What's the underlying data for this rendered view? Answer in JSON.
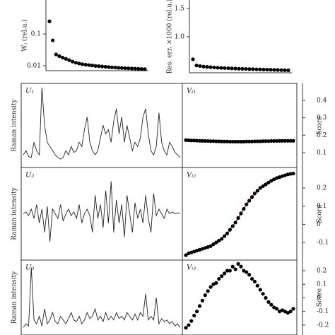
{
  "chart_data": [
    {
      "type": "scatter",
      "ylabel": "Wⱼ (rel.u.)",
      "log_scale": true,
      "color": "#000000",
      "ylim": [
        0.007,
        1.17
      ],
      "yticks": [
        0.01,
        0.1
      ],
      "values": [
        0.25,
        0.063,
        0.0227,
        0.02,
        0.018,
        0.0165,
        0.015,
        0.0135,
        0.0125,
        0.0118,
        0.0112,
        0.0108,
        0.0105,
        0.0102,
        0.0099,
        0.0097,
        0.0095,
        0.0093,
        0.0091,
        0.0089,
        0.0088,
        0.0086,
        0.0085,
        0.0084,
        0.0083,
        0.0082,
        0.0081,
        0.008,
        0.0079,
        0.0078
      ]
    },
    {
      "type": "scatter",
      "ylabel": "Res. err. ×1000 (rel.u.)",
      "log_scale": false,
      "color": "#000000",
      "ylim": [
        0.36,
        1.65
      ],
      "yticks": [
        {
          "value": 1,
          "label": "1.0"
        },
        1.5
      ],
      "values": [
        0.6,
        0.49,
        0.48,
        0.47,
        0.465,
        0.46,
        0.455,
        0.45,
        0.447,
        0.444,
        0.441,
        0.438,
        0.435,
        0.432,
        0.43,
        0.428,
        0.426,
        0.424,
        0.422,
        0.42,
        0.418,
        0.416,
        0.414,
        0.412,
        0.41,
        0.408,
        0.406,
        0.404
      ]
    },
    {
      "type": "line",
      "title": "U₁",
      "ylabel": "Raman intensity",
      "color": "#222222",
      "ylim": [
        0,
        1
      ],
      "values": [
        0.15,
        0.2,
        0.13,
        0.12,
        0.3,
        0.2,
        0.15,
        0.95,
        0.5,
        0.3,
        0.25,
        0.2,
        0.15,
        0.12,
        0.1,
        0.12,
        0.2,
        0.15,
        0.25,
        0.18,
        0.2,
        0.3,
        0.25,
        0.45,
        0.6,
        0.3,
        0.2,
        0.15,
        0.2,
        0.35,
        0.5,
        0.4,
        0.45,
        0.3,
        0.55,
        0.7,
        0.4,
        0.6,
        0.3,
        0.5,
        0.35,
        0.2,
        0.3,
        0.25,
        0.35,
        0.6,
        0.7,
        0.4,
        0.2,
        0.15,
        0.25,
        0.65,
        0.3,
        0.2,
        0.15,
        0.3,
        0.25,
        0.18,
        0.15,
        0.12
      ]
    },
    {
      "type": "scatter",
      "title": "Vᵢ₁",
      "ylabel": "Score",
      "color": "#000000",
      "ylim": [
        0.015,
        0.497
      ],
      "yticks": [
        0.1,
        0.2,
        0.3,
        0.4
      ],
      "values": [
        0.172,
        0.171,
        0.17,
        0.17,
        0.169,
        0.168,
        0.168,
        0.167,
        0.167,
        0.166,
        0.166,
        0.165,
        0.165,
        0.164,
        0.164,
        0.164,
        0.163,
        0.163,
        0.163,
        0.163,
        0.163,
        0.163,
        0.164,
        0.164,
        0.164,
        0.165,
        0.165,
        0.165,
        0.166,
        0.166,
        0.166,
        0.167,
        0.167,
        0.167,
        0.168,
        0.168,
        0.168,
        0.168,
        0.168,
        0.168
      ]
    },
    {
      "type": "line",
      "title": "U₂",
      "ylabel": "Raman intensity",
      "color": "#222222",
      "ylim": [
        0,
        1
      ],
      "values": [
        0.5,
        0.52,
        0.48,
        0.55,
        0.45,
        0.6,
        0.4,
        0.55,
        0.3,
        0.58,
        0.2,
        0.55,
        0.5,
        0.45,
        0.6,
        0.42,
        0.5,
        0.55,
        0.48,
        0.52,
        0.45,
        0.6,
        0.4,
        0.5,
        0.55,
        0.48,
        0.3,
        0.7,
        0.45,
        0.6,
        0.35,
        0.75,
        0.4,
        0.85,
        0.3,
        0.65,
        0.4,
        0.6,
        0.25,
        0.7,
        0.5,
        0.3,
        0.62,
        0.45,
        0.55,
        0.4,
        0.7,
        0.45,
        0.3,
        0.72,
        0.48,
        0.55,
        0.5,
        0.45,
        0.55,
        0.5,
        0.52,
        0.5,
        0.51,
        0.5
      ]
    },
    {
      "type": "scatter",
      "title": "Vᵢ₂",
      "ylabel": "Score",
      "color": "#000000",
      "fit_color": "#c0392b",
      "ylim": [
        -0.197,
        0.313
      ],
      "yticks": [
        -0.1,
        0,
        0.1,
        0.2
      ],
      "values": [
        -0.17,
        -0.16,
        -0.155,
        -0.15,
        -0.145,
        -0.14,
        -0.135,
        -0.13,
        -0.125,
        -0.12,
        -0.11,
        -0.1,
        -0.09,
        -0.08,
        -0.065,
        -0.05,
        -0.03,
        -0.01,
        0.01,
        0.035,
        0.06,
        0.085,
        0.11,
        0.13,
        0.15,
        0.17,
        0.185,
        0.2,
        0.21,
        0.22,
        0.23,
        0.24,
        0.248,
        0.255,
        0.26,
        0.265,
        0.27,
        0.275,
        0.278,
        0.28
      ]
    },
    {
      "type": "line",
      "title": "U₃",
      "ylabel": "Raman intensity",
      "color": "#222222",
      "ylim": [
        0,
        1
      ],
      "values": [
        0.1,
        0.15,
        0.12,
        0.9,
        0.2,
        0.15,
        0.25,
        0.12,
        0.35,
        0.15,
        0.2,
        0.3,
        0.18,
        0.15,
        0.25,
        0.2,
        0.15,
        0.22,
        0.3,
        0.2,
        0.18,
        0.25,
        0.15,
        0.2,
        0.3,
        0.22,
        0.25,
        0.35,
        0.2,
        0.25,
        0.18,
        0.3,
        0.2,
        0.25,
        0.2,
        0.3,
        0.22,
        0.25,
        0.2,
        0.3,
        0.25,
        0.2,
        0.28,
        0.2,
        0.3,
        0.25,
        0.55,
        0.2,
        0.25,
        0.2,
        0.5,
        0.15,
        0.22,
        0.18,
        0.2,
        0.15,
        0.18,
        0.12,
        0.15,
        0.1
      ]
    },
    {
      "type": "scatter",
      "title": "Vᵢ₃",
      "ylabel": "Score",
      "color": "#000000",
      "ylim": [
        -0.273,
        0.278
      ],
      "yticks": [
        -0.2,
        -0.1,
        0,
        0.1,
        0.2
      ],
      "values": [
        -0.22,
        -0.2,
        -0.17,
        -0.13,
        -0.1,
        -0.06,
        -0.02,
        0.02,
        0.05,
        0.08,
        0.1,
        0.11,
        0.14,
        0.16,
        0.18,
        0.2,
        0.2,
        0.23,
        0.21,
        0.25,
        0.23,
        0.2,
        0.19,
        0.17,
        0.14,
        0.12,
        0.09,
        0.06,
        0.03,
        0,
        -0.03,
        -0.05,
        -0.07,
        -0.08,
        -0.1,
        -0.09,
        -0.1,
        -0.11,
        -0.1,
        -0.08
      ]
    }
  ]
}
